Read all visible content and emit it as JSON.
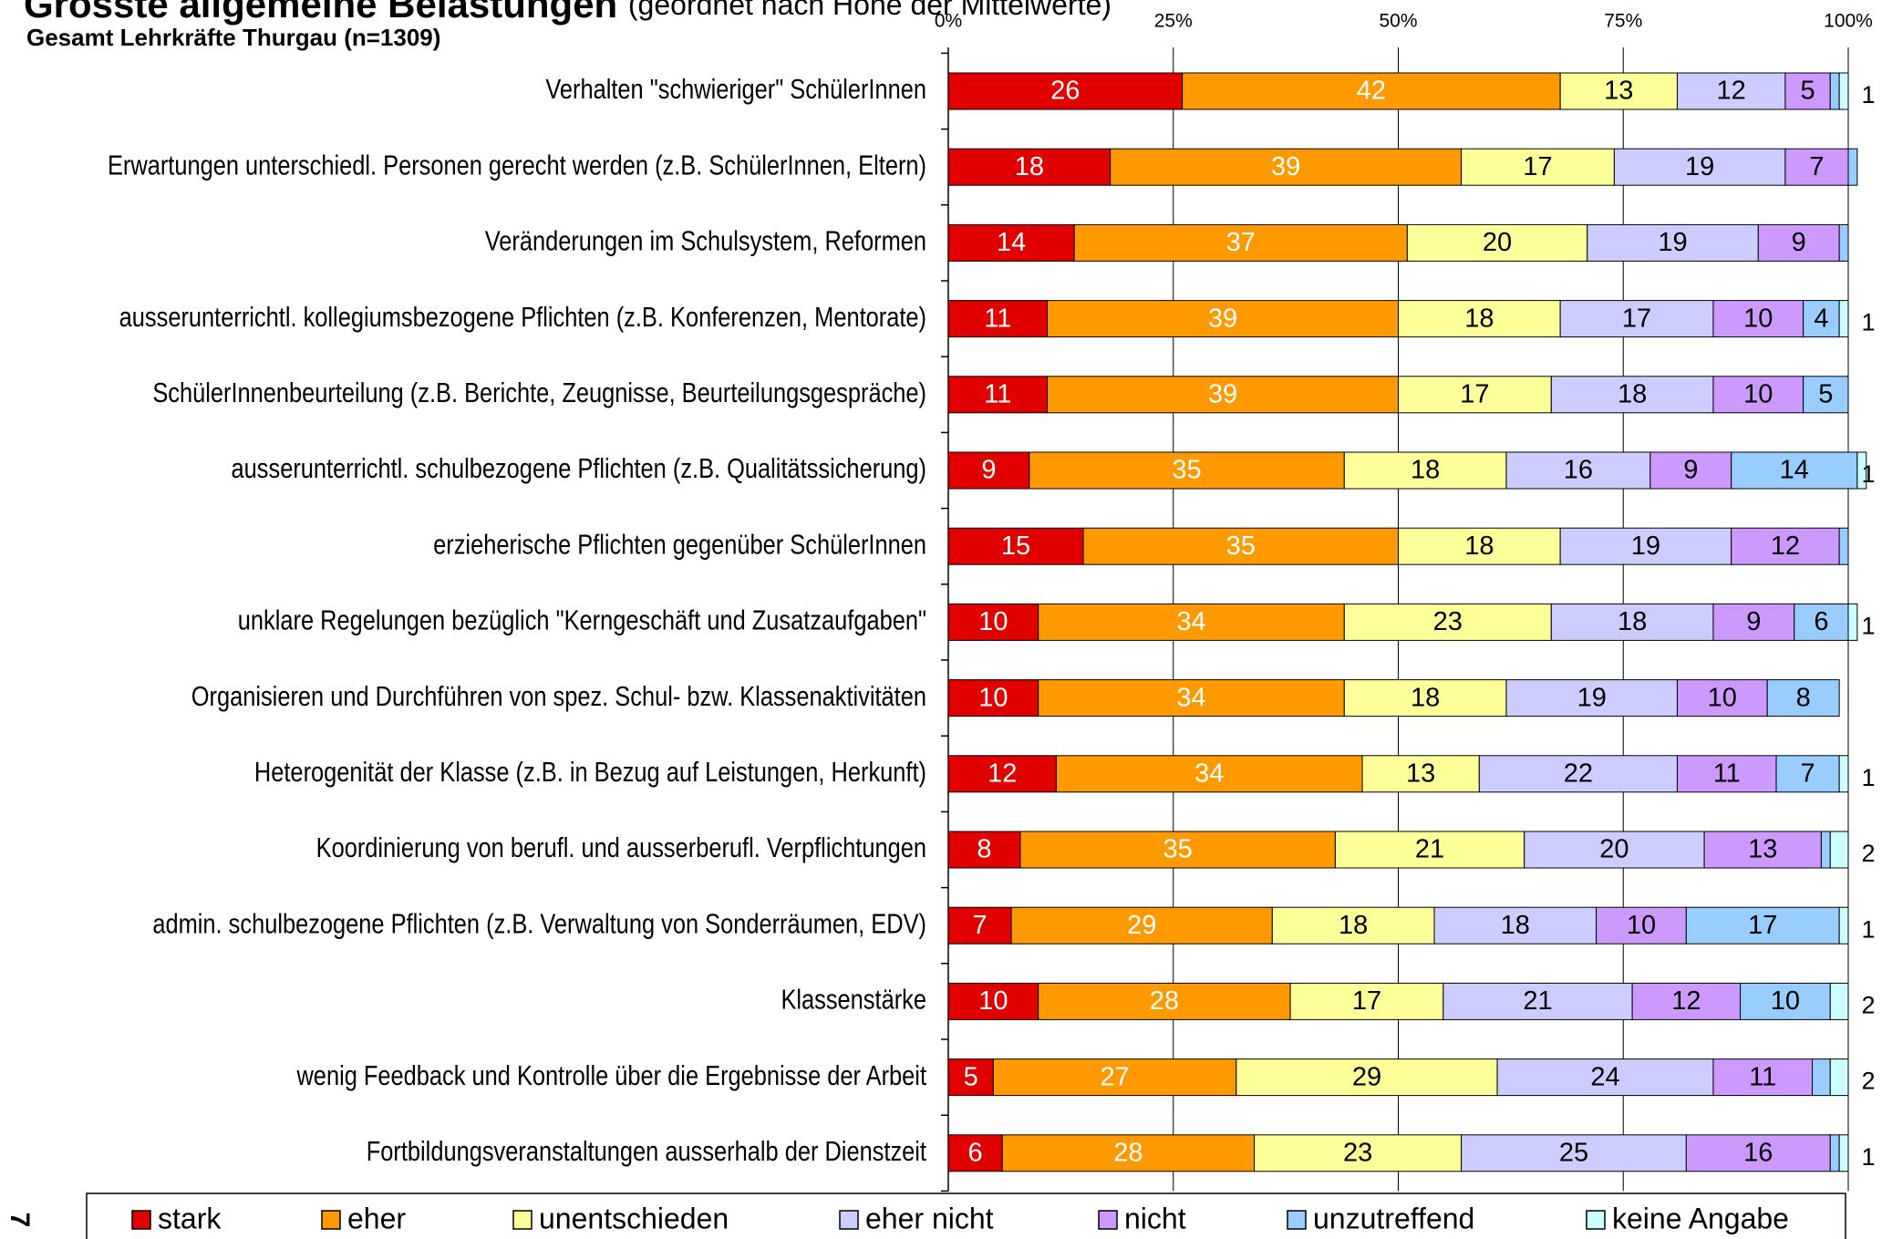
{
  "chart_data": {
    "type": "stacked_barh",
    "title": "Grösste allgemeine Belastungen",
    "title_note": "(geordnet nach Höhe der Mittelwerte)",
    "subtitle": "Gesamt Lehrkräfte Thurgau (n=1309)",
    "page_number": "7",
    "categories": [
      "Verhalten \"schwieriger\" SchülerInnen",
      "Erwartungen unterschiedl. Personen gerecht werden (z.B. SchülerInnen, Eltern)",
      "Veränderungen im Schulsystem, Reformen",
      "ausserunterrichtl. kollegiumsbezogene Pflichten (z.B. Konferenzen, Mentorate)",
      "SchülerInnenbeurteilung (z.B. Berichte, Zeugnisse, Beurteilungsgespräche)",
      "ausserunterrichtl.  schulbezogene Pflichten (z.B. Qualitätssicherung)",
      "erzieherische Pflichten gegenüber SchülerInnen",
      "unklare Regelungen bezüglich \"Kerngeschäft und Zusatzaufgaben\"",
      "Organisieren und Durchführen von spez. Schul- bzw. Klassenaktivitäten",
      "Heterogenität der Klasse (z.B. in Bezug auf Leistungen, Herkunft)",
      "Koordinierung von berufl. und ausserberufl. Verpflichtungen",
      "admin. schulbezogene Pflichten (z.B. Verwaltung von Sonderräumen, EDV)",
      "Klassenstärke",
      "wenig Feedback und Kontrolle über die Ergebnisse der Arbeit",
      "Fortbildungsveranstaltungen ausserhalb der Dienstzeit"
    ],
    "series": [
      {
        "name": "stark",
        "color": "#e00000",
        "values": [
          26,
          18,
          14,
          11,
          11,
          9,
          15,
          10,
          10,
          12,
          8,
          7,
          10,
          5,
          6
        ]
      },
      {
        "name": "eher",
        "color": "#ff9900",
        "values": [
          42,
          39,
          37,
          39,
          39,
          35,
          35,
          34,
          34,
          34,
          35,
          29,
          28,
          27,
          28
        ]
      },
      {
        "name": "unentschieden",
        "color": "#ffff99",
        "values": [
          13,
          17,
          20,
          18,
          17,
          18,
          18,
          23,
          18,
          13,
          21,
          18,
          17,
          29,
          23
        ]
      },
      {
        "name": "eher nicht",
        "color": "#ccccff",
        "values": [
          12,
          19,
          19,
          17,
          18,
          16,
          19,
          18,
          19,
          22,
          20,
          18,
          21,
          24,
          25
        ]
      },
      {
        "name": "nicht",
        "color": "#cc99ff",
        "values": [
          5,
          7,
          9,
          10,
          10,
          9,
          12,
          9,
          10,
          11,
          13,
          10,
          12,
          11,
          16
        ]
      },
      {
        "name": "unzutreffend",
        "color": "#99ccff",
        "values": [
          1,
          1,
          1,
          4,
          5,
          14,
          1,
          6,
          8,
          7,
          1,
          17,
          10,
          2,
          1
        ]
      },
      {
        "name": "keine Angabe",
        "color": "#ccffff",
        "values": [
          1,
          0,
          0,
          1,
          0,
          1,
          0,
          1,
          0,
          1,
          2,
          1,
          2,
          2,
          1
        ]
      }
    ],
    "xlim": [
      0,
      100
    ],
    "xticks": [
      {
        "value": 0,
        "label": "0%"
      },
      {
        "value": 25,
        "label": "25%"
      },
      {
        "value": 50,
        "label": "50%"
      },
      {
        "value": 75,
        "label": "75%"
      },
      {
        "value": 100,
        "label": "100%"
      }
    ],
    "grid": true,
    "legend": "bottom"
  }
}
